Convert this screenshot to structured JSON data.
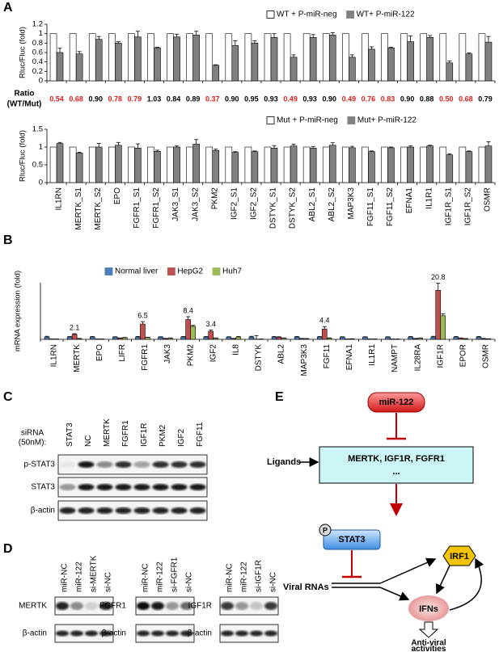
{
  "panels": [
    "A",
    "B",
    "C",
    "D",
    "E"
  ],
  "chart_data": [
    {
      "type": "bar",
      "ylabel": "Rluc/Fluc (fold)",
      "ylim": [
        0,
        1.2
      ],
      "yticks": [
        0,
        0.2,
        0.4,
        0.6,
        0.8,
        1,
        1.2
      ],
      "series": [
        {
          "name": "WT + P-miR-neg",
          "color": "#ffffff",
          "values": [
            1,
            1,
            1,
            1,
            1,
            1,
            1,
            1,
            1,
            1,
            1,
            1,
            1,
            1,
            1,
            1,
            1,
            1,
            1,
            1,
            1,
            1,
            1
          ]
        },
        {
          "name": "WT+ P-miR-122",
          "color": "#808080",
          "values": [
            0.6,
            0.57,
            0.88,
            0.8,
            0.93,
            0.7,
            0.93,
            0.97,
            0.33,
            0.75,
            0.8,
            0.92,
            0.5,
            0.92,
            0.97,
            0.5,
            0.67,
            0.7,
            0.83,
            0.92,
            0.38,
            0.57,
            0.82
          ],
          "errors": [
            0.09,
            0.05,
            0.06,
            0.03,
            0.12,
            0.01,
            0.06,
            0.08,
            0.01,
            0.1,
            0.05,
            0.08,
            0.05,
            0.06,
            0.05,
            0.05,
            0.05,
            0.01,
            0.12,
            0.04,
            0.04,
            0.02,
            0.12
          ]
        }
      ],
      "ratio_label": [
        "Ratio",
        "(WT/Mut)"
      ],
      "ratios": [
        "0.54",
        "0.68",
        "0.90",
        "0.78",
        "0.79",
        "1.03",
        "0.84",
        "0.89",
        "0.37",
        "0.90",
        "0.95",
        "0.93",
        "0.49",
        "0.93",
        "0.90",
        "0.49",
        "0.76",
        "0.83",
        "0.90",
        "0.88",
        "0.50",
        "0.68",
        "0.79"
      ],
      "ratio_colors": [
        "#e0201b",
        "#e0201b",
        "#000000",
        "#e0201b",
        "#e0201b",
        "#000000",
        "#000000",
        "#000000",
        "#e0201b",
        "#000000",
        "#000000",
        "#000000",
        "#e0201b",
        "#000000",
        "#000000",
        "#e0201b",
        "#e0201b",
        "#e0201b",
        "#000000",
        "#000000",
        "#e0201b",
        "#e0201b",
        "#000000"
      ]
    },
    {
      "type": "bar",
      "ylabel": "Rluc/Fluc (fold)",
      "ylim": [
        0,
        1.5
      ],
      "yticks": [
        0,
        0.5,
        1,
        1.5
      ],
      "categories": [
        "IL1RN",
        "MERTK_S1",
        "MERTK_S2",
        "EPO",
        "FGFR1_S1",
        "FGFR1_S2",
        "JAK3_S1",
        "JAK3_S2",
        "PKM2",
        "IGF2_S1",
        "IGF2_S2",
        "DSTYK_S1",
        "DSTYK_S2",
        "ABL2_S1",
        "ABL2_S2",
        "MAP3K3",
        "FGF11_S1",
        "FGF11_S2",
        "EFNA1",
        "IL1R1",
        "IGF1R_S1",
        "IGF1R_S2",
        "OSMR"
      ],
      "series": [
        {
          "name": "Mut + P-miR-neg",
          "color": "#ffffff",
          "values": [
            1,
            1,
            1,
            1,
            1,
            1,
            1,
            1,
            1,
            1,
            1,
            1,
            1,
            1,
            1,
            1,
            1,
            1,
            1,
            1,
            1,
            1,
            1
          ]
        },
        {
          "name": "Mut+ P-miR-122",
          "color": "#808080",
          "values": [
            1.1,
            0.83,
            1.0,
            1.05,
            0.97,
            0.88,
            1.0,
            1.08,
            0.9,
            0.85,
            0.87,
            0.97,
            1.03,
            0.97,
            1.05,
            0.98,
            0.87,
            0.98,
            1.0,
            1.03,
            0.78,
            0.87,
            1.03
          ],
          "errors": [
            0.03,
            0.02,
            0.1,
            0.08,
            0.12,
            0.03,
            0.03,
            0.13,
            0.04,
            0.02,
            0.02,
            0.07,
            0.05,
            0.04,
            0.07,
            0.04,
            0.02,
            0.02,
            0.03,
            0.02,
            0.03,
            0.02,
            0.12
          ]
        }
      ]
    },
    {
      "type": "bar",
      "ylabel": "mRNA expression (fold)",
      "ylim": [
        0,
        24
      ],
      "categories": [
        "IL1RN",
        "MERTK",
        "EPO",
        "LIFR",
        "FGFR1",
        "JAK3",
        "PKM2",
        "IGF2",
        "IL8",
        "DSTYK",
        "ABL2",
        "MAP3K3",
        "FGF11",
        "EFNA1",
        "IL1R1",
        "NAMPT",
        "IL28RA",
        "IGF1R",
        "EPOR",
        "OSMR"
      ],
      "series": [
        {
          "name": "Normal liver",
          "color": "#4a7ebb",
          "values": [
            1,
            1,
            1,
            1,
            1,
            1,
            1,
            1,
            1,
            1,
            1,
            1,
            1,
            1,
            1,
            1,
            1,
            1,
            1,
            1
          ],
          "errors": [
            0.3,
            0.2,
            0.2,
            0.1,
            0.2,
            0.1,
            0.2,
            0.2,
            0.1,
            0.3,
            0.2,
            0.2,
            0.2,
            0.1,
            0.1,
            0.1,
            0.2,
            0.3,
            0.2,
            0.2
          ]
        },
        {
          "name": "HepG2",
          "color": "#c0504d",
          "values": [
            0.1,
            2.1,
            0.1,
            0.5,
            6.5,
            0.3,
            8.4,
            3.4,
            0.3,
            0.1,
            0.9,
            0.3,
            4.4,
            0.1,
            0.1,
            0.1,
            0.3,
            20.8,
            0.5,
            0.3
          ],
          "errors": [
            0.05,
            0.3,
            0.05,
            0.1,
            1.0,
            0.1,
            1.2,
            0.5,
            0.1,
            1.5,
            0.2,
            0.1,
            1.0,
            0.05,
            0.05,
            0.05,
            0.1,
            3.0,
            0.1,
            0.1
          ],
          "value_labels": [
            null,
            "2.1",
            null,
            null,
            "6.5",
            null,
            "8.4",
            "3.4",
            null,
            null,
            null,
            null,
            "4.4",
            null,
            null,
            null,
            null,
            "20.8",
            null,
            null
          ]
        },
        {
          "name": "Huh7",
          "color": "#9bbb59",
          "values": [
            0.1,
            0.3,
            0.1,
            0.7,
            0.8,
            0.5,
            5.5,
            0.5,
            1.0,
            0.1,
            0.5,
            0.3,
            0.5,
            0.2,
            0.1,
            0.1,
            0.5,
            10,
            0.3,
            0.2
          ],
          "errors": [
            0.05,
            0.1,
            0.05,
            0.1,
            0.1,
            0.1,
            0.4,
            0.1,
            0.2,
            0.05,
            0.1,
            0.05,
            0.1,
            0.05,
            0.05,
            0.05,
            0.1,
            0.8,
            0.05,
            0.05
          ]
        }
      ]
    }
  ],
  "blot_c": {
    "siRNA_label": [
      "siRNA",
      "(50nM):"
    ],
    "lanes": [
      "STAT3",
      "NC",
      "MERTK",
      "FGFR1",
      "IGF1R",
      "PKM2",
      "IGF2",
      "FGF11"
    ],
    "rows": [
      "p-STAT3",
      "STAT3",
      "β-actin"
    ]
  },
  "blots_d": [
    {
      "lanes": [
        "miR-NC",
        "miR-122",
        "si-MERTK",
        "si-NC"
      ],
      "rows": [
        "MERTK",
        "β-actin"
      ]
    },
    {
      "lanes": [
        "miR-NC",
        "miR-122",
        "si-FGFR1",
        "si-NC"
      ],
      "rows": [
        "FGFR1",
        "β-actin"
      ]
    },
    {
      "lanes": [
        "miR-NC",
        "miR-122",
        "si-IGF1R",
        "si-NC"
      ],
      "rows": [
        "IGF1R",
        "β-actin"
      ]
    }
  ],
  "diagram_e": {
    "mirna": "miR-122",
    "targets": [
      "MERTK, IGF1R, FGFR1",
      "..."
    ],
    "ligands": "Ligands",
    "phospho": "P",
    "stat3": "STAT3",
    "viral": "Viral RNAs",
    "irf1": "IRF1",
    "ifns": "IFNs",
    "outcome": [
      "Anti-viral",
      "activities"
    ]
  }
}
